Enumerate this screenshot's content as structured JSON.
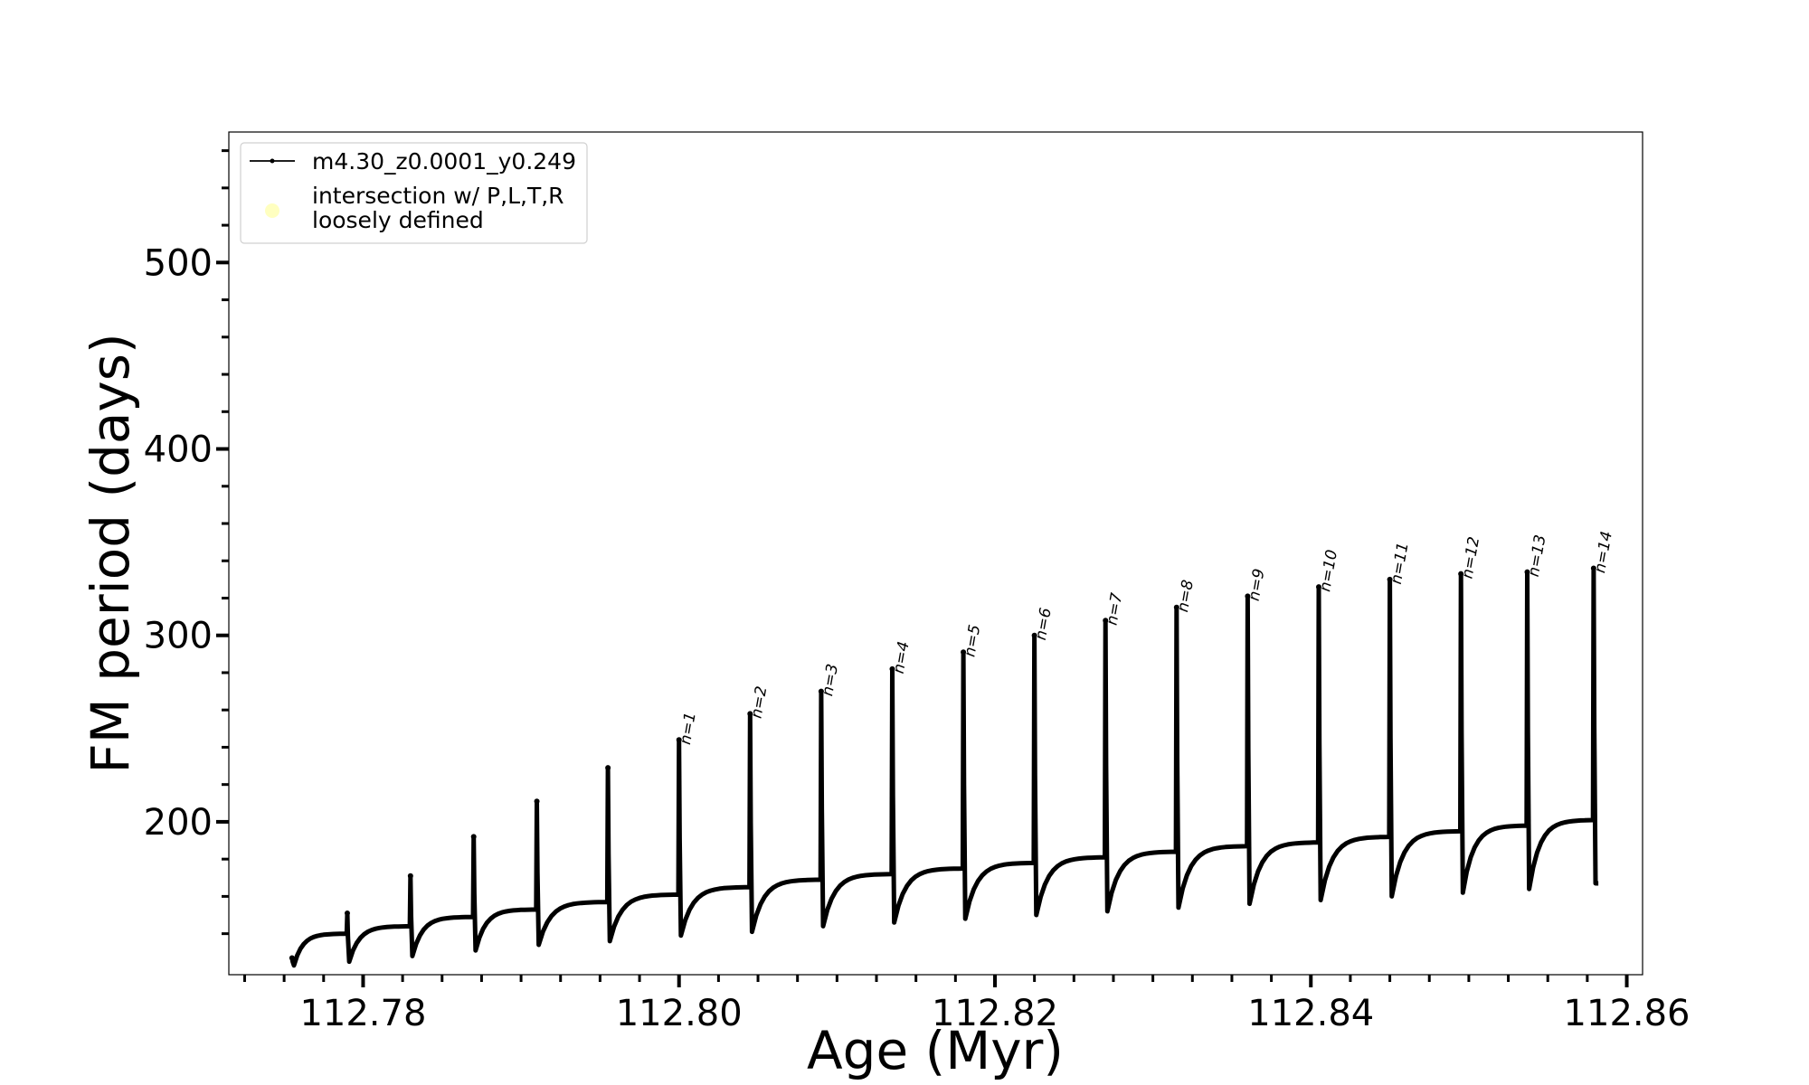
{
  "chart_data": {
    "type": "line",
    "title": "",
    "xlabel": "Age (Myr)",
    "ylabel": "FM period (days)",
    "xlim": [
      112.7715,
      112.861
    ],
    "ylim": [
      118,
      570
    ],
    "x_ticks": [
      112.78,
      112.8,
      112.82,
      112.84,
      112.86
    ],
    "x_tick_labels": [
      "112.78",
      "112.80",
      "112.82",
      "112.84",
      "112.86"
    ],
    "y_ticks": [
      200,
      300,
      400,
      500
    ],
    "y_tick_labels": [
      "200",
      "300",
      "400",
      "500"
    ],
    "legend": {
      "placement": "top-left",
      "entries": [
        {
          "label": "m4.30_z0.0001_y0.249",
          "marker": "line-with-dots",
          "color": "#000000"
        },
        {
          "label_lines": [
            "intersection w/ P,L,T,R",
            "loosely defined"
          ],
          "marker": "circle",
          "color": "#ffffc0"
        }
      ]
    },
    "series": [
      {
        "name": "m4.30_z0.0001_y0.249",
        "color": "#000000",
        "pulses": [
          {
            "x": 112.7755,
            "start": 127,
            "peak": 127,
            "min": 123,
            "plateau": 140,
            "label": ""
          },
          {
            "x": 112.779,
            "start": 140,
            "peak": 151,
            "min": 125,
            "plateau": 144,
            "label": ""
          },
          {
            "x": 112.783,
            "start": 144,
            "peak": 171,
            "min": 128,
            "plateau": 149,
            "label": ""
          },
          {
            "x": 112.787,
            "start": 149,
            "peak": 192,
            "min": 131,
            "plateau": 153,
            "label": ""
          },
          {
            "x": 112.791,
            "start": 153,
            "peak": 211,
            "min": 134,
            "plateau": 157,
            "label": ""
          },
          {
            "x": 112.7955,
            "start": 157,
            "peak": 229,
            "min": 136,
            "plateau": 161,
            "label": ""
          },
          {
            "x": 112.8,
            "start": 161,
            "peak": 244,
            "min": 139,
            "plateau": 165,
            "label": "n=1"
          },
          {
            "x": 112.8045,
            "start": 165,
            "peak": 258,
            "min": 141,
            "plateau": 169,
            "label": "n=2"
          },
          {
            "x": 112.809,
            "start": 169,
            "peak": 270,
            "min": 144,
            "plateau": 172,
            "label": "n=3"
          },
          {
            "x": 112.8135,
            "start": 172,
            "peak": 282,
            "min": 146,
            "plateau": 175,
            "label": "n=4"
          },
          {
            "x": 112.818,
            "start": 175,
            "peak": 291,
            "min": 148,
            "plateau": 178,
            "label": "n=5"
          },
          {
            "x": 112.8225,
            "start": 178,
            "peak": 300,
            "min": 150,
            "plateau": 181,
            "label": "n=6"
          },
          {
            "x": 112.827,
            "start": 181,
            "peak": 308,
            "min": 152,
            "plateau": 184,
            "label": "n=7"
          },
          {
            "x": 112.8315,
            "start": 184,
            "peak": 315,
            "min": 154,
            "plateau": 187,
            "label": "n=8"
          },
          {
            "x": 112.836,
            "start": 187,
            "peak": 321,
            "min": 156,
            "plateau": 189,
            "label": "n=9"
          },
          {
            "x": 112.8405,
            "start": 189,
            "peak": 326,
            "min": 158,
            "plateau": 192,
            "label": "n=10"
          },
          {
            "x": 112.845,
            "start": 192,
            "peak": 330,
            "min": 160,
            "plateau": 195,
            "label": "n=11"
          },
          {
            "x": 112.8495,
            "start": 195,
            "peak": 333,
            "min": 162,
            "plateau": 198,
            "label": "n=12"
          },
          {
            "x": 112.8537,
            "start": 198,
            "peak": 334,
            "min": 164,
            "plateau": 201,
            "label": "n=13"
          },
          {
            "x": 112.8579,
            "start": 201,
            "peak": 336,
            "min": 167,
            "plateau": 167,
            "label": "n=14"
          }
        ]
      }
    ]
  }
}
